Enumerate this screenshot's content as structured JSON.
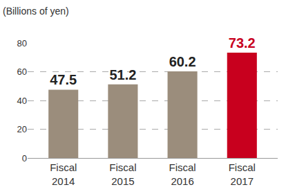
{
  "chart_data": {
    "type": "bar",
    "ylabel": "(Billions of yen)",
    "categories": [
      "Fiscal 2014",
      "Fiscal 2015",
      "Fiscal 2016",
      "Fiscal 2017"
    ],
    "values": [
      47.5,
      51.2,
      60.2,
      73.2
    ],
    "colors": [
      "#9b8d7c",
      "#9b8d7c",
      "#9b8d7c",
      "#c8001e"
    ],
    "ylim": [
      0,
      80
    ],
    "yticks": [
      0,
      20,
      40,
      60,
      80
    ],
    "grid": true,
    "data_labels": true
  }
}
